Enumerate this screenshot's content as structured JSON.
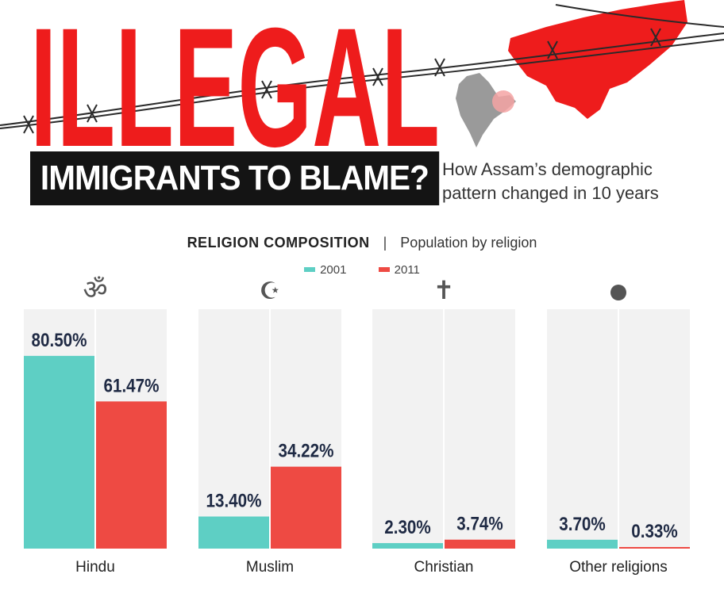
{
  "headline": {
    "title": "ILLEGAL",
    "banner": "IMMIGRANTS TO BLAME?",
    "subtitle_line1": "How Assam’s demographic",
    "subtitle_line2": "pattern changed in 10 years"
  },
  "section": {
    "title": "RELIGION COMPOSITION",
    "separator": "|",
    "description": "Population by religion"
  },
  "colors": {
    "series_2001": "#5ecfc4",
    "series_2011": "#ee4a43",
    "headline": "#ee1c1c",
    "banner": "#141414",
    "panel": "#f2f2f2"
  },
  "icons": [
    "om-icon",
    "crescent-star-icon",
    "cross-icon",
    "circle-icon"
  ],
  "chart_data": {
    "type": "bar",
    "title": "RELIGION COMPOSITION",
    "subtitle": "Population by religion",
    "categories": [
      "Hindu",
      "Muslim",
      "Christian",
      "Other religions"
    ],
    "series": [
      {
        "name": "2001",
        "values": [
          80.5,
          13.4,
          2.3,
          3.7
        ],
        "labels": [
          "80.50%",
          "13.40%",
          "2.30%",
          "3.70%"
        ]
      },
      {
        "name": "2011",
        "values": [
          61.47,
          34.22,
          3.74,
          0.33
        ],
        "labels": [
          "61.47%",
          "34.22%",
          "3.74%",
          "0.33%"
        ]
      }
    ],
    "ylim": [
      0,
      100
    ],
    "unit": "%",
    "legend_position": "top",
    "grid": false
  }
}
